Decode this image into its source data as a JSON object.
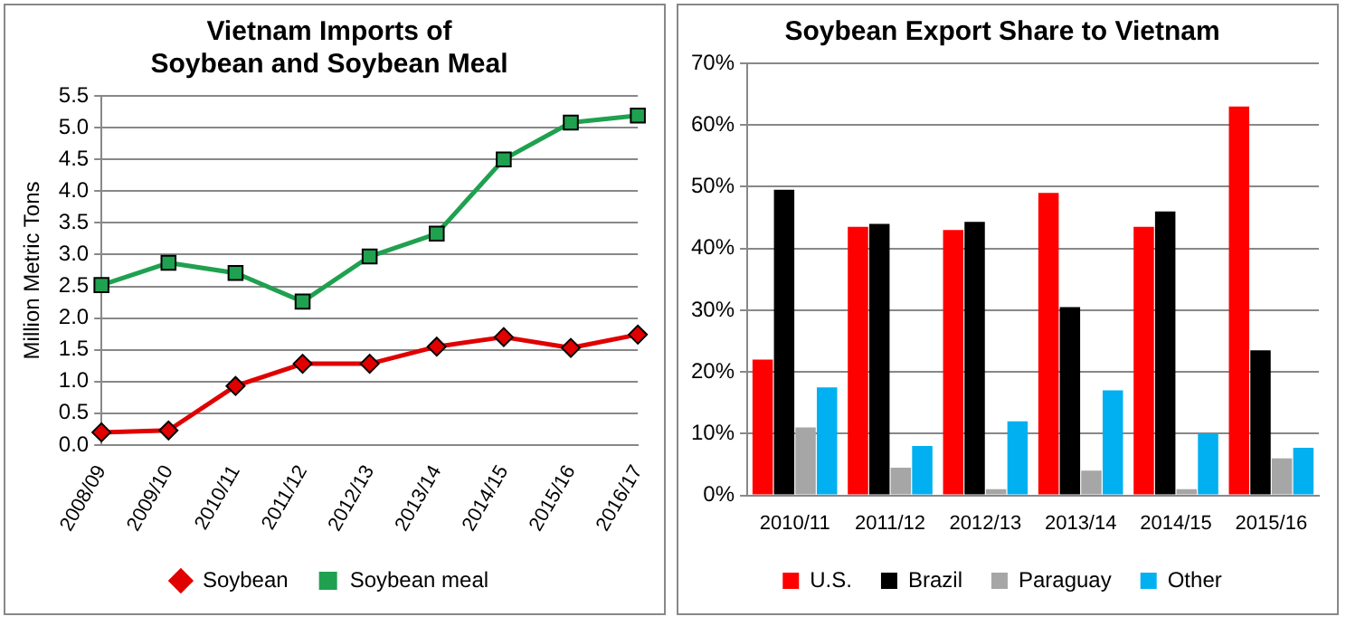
{
  "chart_data": [
    {
      "type": "line",
      "title": "Vietnam Imports of\nSoybean and Soybean Meal",
      "ylabel": "Million Metric Tons",
      "categories": [
        "2008/09",
        "2009/10",
        "2010/11",
        "2011/12",
        "2012/13",
        "2013/14",
        "2014/15",
        "2015/16",
        "2016/17"
      ],
      "series": [
        {
          "name": "Soybean",
          "color": "#e00000",
          "marker": "diamond",
          "values": [
            0.2,
            0.23,
            0.93,
            1.28,
            1.28,
            1.55,
            1.7,
            1.53,
            1.74
          ]
        },
        {
          "name": "Soybean meal",
          "color": "#1fa14f",
          "marker": "square",
          "values": [
            2.52,
            2.87,
            2.71,
            2.26,
            2.97,
            3.33,
            4.5,
            5.08,
            5.19
          ]
        }
      ],
      "ylim": [
        0,
        5.5
      ],
      "yticks": [
        {
          "value": 0,
          "label": "0.0"
        },
        {
          "value": 0.5,
          "label": "0.5"
        },
        {
          "value": 1,
          "label": "1.0"
        },
        {
          "value": 1.5,
          "label": "1.5"
        },
        {
          "value": 2,
          "label": "2.0"
        },
        {
          "value": 2.5,
          "label": "2.5"
        },
        {
          "value": 3,
          "label": "3.0"
        },
        {
          "value": 3.5,
          "label": "3.5"
        },
        {
          "value": 4,
          "label": "4.0"
        },
        {
          "value": 4.5,
          "label": "4.5"
        },
        {
          "value": 5,
          "label": "5.0"
        },
        {
          "value": 5.5,
          "label": "5.5"
        }
      ],
      "grid": "y",
      "legend": "bottom",
      "line_style": "solid"
    },
    {
      "type": "bar",
      "title": "Soybean Export Share to Vietnam",
      "categories": [
        "2010/11",
        "2011/12",
        "2012/13",
        "2013/14",
        "2014/15",
        "2015/16"
      ],
      "series": [
        {
          "name": "U.S.",
          "color": "#ff0000",
          "values": [
            22,
            43.5,
            43,
            49,
            43.5,
            63
          ]
        },
        {
          "name": "Brazil",
          "color": "#000000",
          "values": [
            49.5,
            44,
            44.3,
            30.5,
            46,
            23.5
          ]
        },
        {
          "name": "Paraguay",
          "color": "#a6a6a6",
          "values": [
            11,
            4.5,
            1,
            4,
            1,
            6
          ]
        },
        {
          "name": "Other",
          "color": "#00b0f0",
          "values": [
            17.5,
            8,
            12,
            17,
            10,
            7.7
          ]
        }
      ],
      "ylim": [
        0,
        70
      ],
      "yticks": [
        {
          "value": 0,
          "label": "0%"
        },
        {
          "value": 10,
          "label": "10%"
        },
        {
          "value": 20,
          "label": "20%"
        },
        {
          "value": 30,
          "label": "30%"
        },
        {
          "value": 40,
          "label": "40%"
        },
        {
          "value": 50,
          "label": "50%"
        },
        {
          "value": 60,
          "label": "60%"
        },
        {
          "value": 70,
          "label": "70%"
        }
      ],
      "grid": "y",
      "legend": "bottom"
    }
  ]
}
